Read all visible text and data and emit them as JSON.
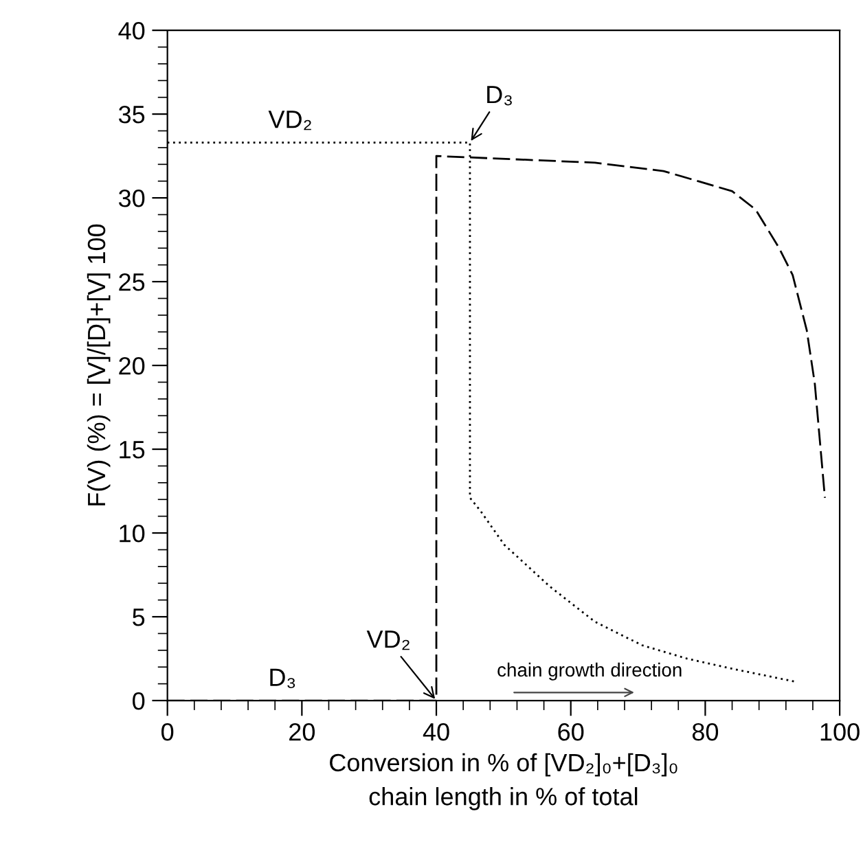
{
  "chart_data": {
    "type": "line",
    "xlabel": "Conversion in % of [VD₂]₀+[D₃]₀\nchain length in % of total",
    "ylabel": "F(V) (%) = [V]/[D]+[V] 100",
    "series": [
      {
        "name": "VD₂",
        "color": "#000000",
        "line_style": "dotted",
        "x": [
          0,
          45,
          45,
          46.6,
          50.1,
          56.9,
          63.6,
          70.6,
          77.3,
          84.0,
          93.7
        ],
        "values": [
          33.3,
          33.3,
          12.1,
          11.3,
          9.3,
          6.8,
          4.7,
          3.3,
          2.5,
          1.9,
          1.1
        ]
      },
      {
        "name": "D₃",
        "color": "#000000",
        "line_style": "dashed",
        "x": [
          0,
          40,
          40,
          63.6,
          73.8,
          84.0,
          87.5,
          91.0,
          93.0,
          95.1,
          96.3,
          97.8
        ],
        "values": [
          0,
          0,
          32.5,
          32.1,
          31.6,
          30.4,
          29.3,
          27.0,
          25.4,
          22.1,
          18.9,
          12.1
        ]
      }
    ],
    "annotations": [
      {
        "text": "D₃",
        "x": 45,
        "y": 33.3
      },
      {
        "text": "VD₂",
        "x": 40,
        "y": 0
      },
      "chain growth direction"
    ],
    "xlim": [
      0,
      100
    ],
    "xticks": [
      0,
      20,
      40,
      60,
      80,
      100
    ],
    "ylim": [
      0,
      40
    ],
    "yticks": [
      0,
      5,
      10,
      15,
      20,
      25,
      30,
      35,
      40
    ],
    "marker": "none",
    "grid": false,
    "legend": false
  }
}
